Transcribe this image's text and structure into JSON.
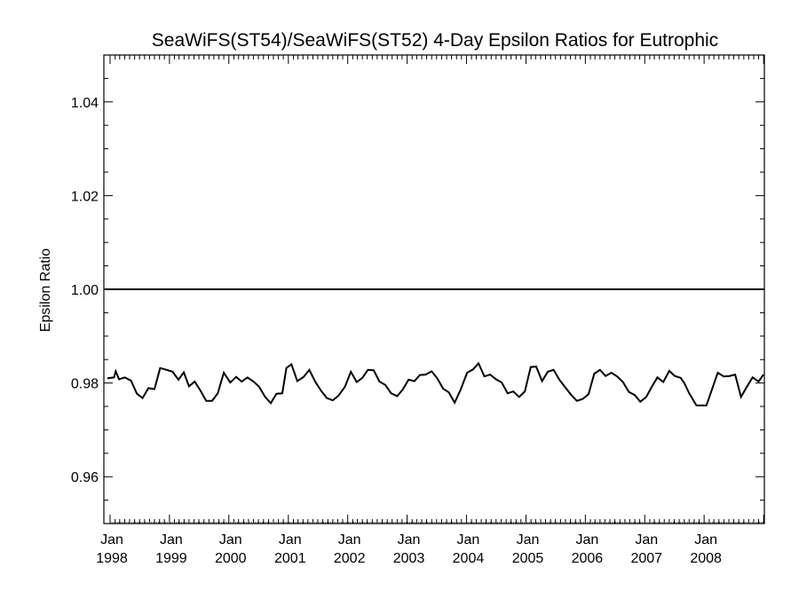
{
  "chart_data": {
    "type": "line",
    "title": "SeaWiFS(ST54)/SeaWiFS(ST52) 4-Day Epsilon Ratios for Eutrophic",
    "xlabel": "",
    "ylabel": "Epsilon Ratio",
    "xlim": [
      "1998-01-01",
      "2008-12-31"
    ],
    "ylim": [
      0.95,
      1.05
    ],
    "yticks": [
      0.96,
      0.98,
      1.0,
      1.02,
      1.04
    ],
    "ytick_labels": [
      "0.96",
      "0.98",
      "1.00",
      "1.02",
      "1.04"
    ],
    "xtick_labels": [
      {
        "month": "Jan",
        "year": "1998",
        "date": "1998-01-01"
      },
      {
        "month": "Jan",
        "year": "1999",
        "date": "1999-01-01"
      },
      {
        "month": "Jan",
        "year": "2000",
        "date": "2000-01-01"
      },
      {
        "month": "Jan",
        "year": "2001",
        "date": "2001-01-01"
      },
      {
        "month": "Jan",
        "year": "2002",
        "date": "2002-01-01"
      },
      {
        "month": "Jan",
        "year": "2003",
        "date": "2003-01-01"
      },
      {
        "month": "Jan",
        "year": "2004",
        "date": "2004-01-01"
      },
      {
        "month": "Jan",
        "year": "2005",
        "date": "2005-01-01"
      },
      {
        "month": "Jan",
        "year": "2006",
        "date": "2006-01-01"
      },
      {
        "month": "Jan",
        "year": "2007",
        "date": "2007-01-01"
      },
      {
        "month": "Jan",
        "year": "2008",
        "date": "2008-01-01"
      }
    ],
    "reference_line": {
      "y": 1.0
    },
    "grid": false,
    "legend": "none",
    "line_color": "#000000",
    "series": [
      {
        "x": [
          "1997-12-15",
          "1998-01-25",
          "1998-02-05",
          "1998-02-25",
          "1998-04-01",
          "1998-05-10",
          "1998-06-15",
          "1998-07-20",
          "1998-08-25",
          "1998-10-01",
          "1998-11-05",
          "1998-12-15",
          "1999-01-20",
          "1999-02-25",
          "1999-03-30",
          "1999-05-01",
          "1999-06-05",
          "1999-07-10",
          "1999-08-15",
          "1999-09-20",
          "1999-10-25",
          "1999-12-01",
          "2000-01-10",
          "2000-02-15",
          "2000-03-20",
          "2000-04-25",
          "2000-06-01",
          "2000-07-05",
          "2000-08-10",
          "2000-09-15",
          "2000-10-20",
          "2000-11-25",
          "2000-12-20",
          "2001-01-20",
          "2001-02-25",
          "2001-04-05",
          "2001-05-10",
          "2001-06-15",
          "2001-07-20",
          "2001-08-25",
          "2001-10-01",
          "2001-11-05",
          "2001-12-15",
          "2002-01-20",
          "2002-02-25",
          "2002-04-01",
          "2002-05-05",
          "2002-06-10",
          "2002-07-15",
          "2002-08-20",
          "2002-09-25",
          "2002-11-01",
          "2002-12-05",
          "2003-01-10",
          "2003-02-15",
          "2003-03-20",
          "2003-04-25",
          "2003-06-01",
          "2003-07-05",
          "2003-08-10",
          "2003-09-15",
          "2003-10-20",
          "2003-11-25",
          "2004-01-05",
          "2004-02-10",
          "2004-03-15",
          "2004-04-20",
          "2004-05-25",
          "2004-07-01",
          "2004-08-05",
          "2004-09-10",
          "2004-10-15",
          "2004-11-20",
          "2004-12-25",
          "2005-01-30",
          "2005-03-05",
          "2005-04-10",
          "2005-05-15",
          "2005-06-20",
          "2005-07-25",
          "2005-09-01",
          "2005-10-05",
          "2005-11-10",
          "2005-12-15",
          "2006-01-20",
          "2006-02-25",
          "2006-04-01",
          "2006-05-05",
          "2006-06-10",
          "2006-07-15",
          "2006-08-20",
          "2006-09-25",
          "2006-11-01",
          "2006-12-05",
          "2007-01-10",
          "2007-02-15",
          "2007-03-20",
          "2007-04-25",
          "2007-06-01",
          "2007-07-05",
          "2007-08-10",
          "2007-09-01",
          "2007-10-01",
          "2007-11-15",
          "2008-01-15",
          "2008-02-20",
          "2008-03-25",
          "2008-05-01",
          "2008-06-05",
          "2008-07-10",
          "2008-08-15",
          "2008-09-20",
          "2008-10-25",
          "2008-12-01",
          "2008-12-31"
        ],
        "y": [
          0.981,
          0.9812,
          0.9825,
          0.9808,
          0.9812,
          0.9805,
          0.9777,
          0.9768,
          0.9789,
          0.9787,
          0.9832,
          0.9828,
          0.9824,
          0.9807,
          0.9823,
          0.9793,
          0.9803,
          0.9784,
          0.9762,
          0.9762,
          0.9778,
          0.9822,
          0.9801,
          0.9813,
          0.9803,
          0.9812,
          0.9803,
          0.9792,
          0.9771,
          0.9757,
          0.9777,
          0.9778,
          0.9832,
          0.984,
          0.9804,
          0.9813,
          0.9828,
          0.9803,
          0.9784,
          0.9768,
          0.9763,
          0.9773,
          0.9792,
          0.9824,
          0.9802,
          0.9811,
          0.9828,
          0.9827,
          0.9803,
          0.9796,
          0.9778,
          0.9772,
          0.9786,
          0.9807,
          0.9804,
          0.9817,
          0.9818,
          0.9825,
          0.981,
          0.9788,
          0.978,
          0.9758,
          0.9785,
          0.9822,
          0.9829,
          0.9842,
          0.9814,
          0.9818,
          0.9808,
          0.9801,
          0.9778,
          0.9782,
          0.977,
          0.9782,
          0.9834,
          0.9835,
          0.9804,
          0.9824,
          0.9828,
          0.9807,
          0.979,
          0.9775,
          0.9762,
          0.9766,
          0.9776,
          0.982,
          0.9828,
          0.9815,
          0.9822,
          0.9814,
          0.9802,
          0.9781,
          0.9774,
          0.976,
          0.977,
          0.9793,
          0.9812,
          0.9802,
          0.9826,
          0.9815,
          0.9811,
          0.98,
          0.9778,
          0.9752,
          0.9752,
          0.9788,
          0.9822,
          0.9814,
          0.9815,
          0.9818,
          0.977,
          0.9792,
          0.9812,
          0.9803,
          0.9818
        ]
      }
    ]
  }
}
